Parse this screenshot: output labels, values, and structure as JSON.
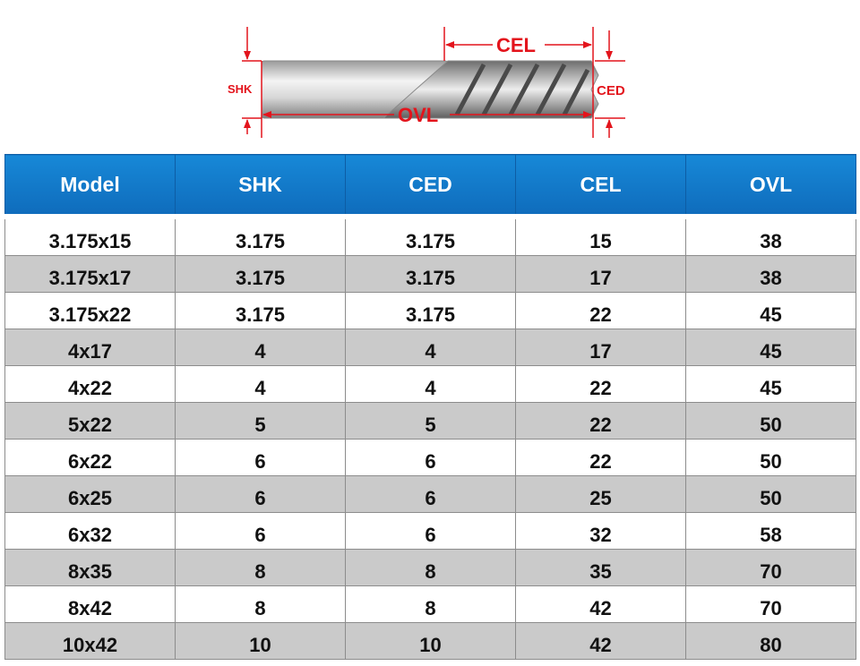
{
  "diagram": {
    "labels": {
      "shk": "SHK",
      "ced": "CED",
      "cel": "CEL",
      "ovl": "OVL"
    },
    "colors": {
      "dimension": "#e3141c",
      "shank": "#c8c8c8"
    }
  },
  "table": {
    "headers": [
      "Model",
      "SHK",
      "CED",
      "CEL",
      "OVL"
    ],
    "rows": [
      [
        "3.175x15",
        "3.175",
        "3.175",
        "15",
        "38"
      ],
      [
        "3.175x17",
        "3.175",
        "3.175",
        "17",
        "38"
      ],
      [
        "3.175x22",
        "3.175",
        "3.175",
        "22",
        "45"
      ],
      [
        "4x17",
        "4",
        "4",
        "17",
        "45"
      ],
      [
        "4x22",
        "4",
        "4",
        "22",
        "45"
      ],
      [
        "5x22",
        "5",
        "5",
        "22",
        "50"
      ],
      [
        "6x22",
        "6",
        "6",
        "22",
        "50"
      ],
      [
        "6x25",
        "6",
        "6",
        "25",
        "50"
      ],
      [
        "6x32",
        "6",
        "6",
        "32",
        "58"
      ],
      [
        "8x35",
        "8",
        "8",
        "35",
        "70"
      ],
      [
        "8x42",
        "8",
        "8",
        "42",
        "70"
      ],
      [
        "10x42",
        "10",
        "10",
        "42",
        "80"
      ]
    ],
    "colors": {
      "header_bg": "#0f6cbc",
      "alt_row_bg": "#cacaca"
    }
  }
}
